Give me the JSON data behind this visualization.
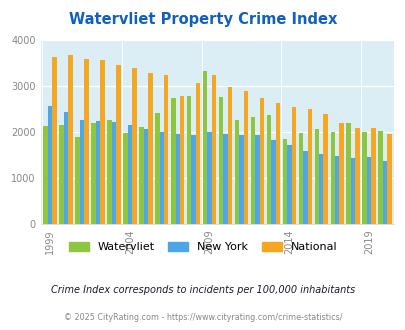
{
  "title": "Watervliet Property Crime Index",
  "title_color": "#1060c0",
  "years": [
    1999,
    2000,
    2001,
    2002,
    2003,
    2004,
    2005,
    2006,
    2007,
    2008,
    2009,
    2010,
    2011,
    2012,
    2013,
    2014,
    2015,
    2016,
    2017,
    2018,
    2019,
    2020
  ],
  "watervliet": [
    2120,
    2150,
    1900,
    2200,
    2270,
    1970,
    2100,
    2420,
    2730,
    2790,
    3310,
    2760,
    2270,
    2320,
    2360,
    1840,
    1980,
    2060,
    1990,
    2200,
    1990,
    2020
  ],
  "new_york": [
    2560,
    2440,
    2260,
    2230,
    2210,
    2160,
    2070,
    1990,
    1960,
    1930,
    2000,
    1950,
    1940,
    1930,
    1820,
    1720,
    1590,
    1530,
    1480,
    1440,
    1460,
    1370
  ],
  "national": [
    3620,
    3660,
    3590,
    3560,
    3450,
    3380,
    3270,
    3230,
    2790,
    3060,
    3230,
    2980,
    2890,
    2740,
    2620,
    2540,
    2490,
    2380,
    2190,
    2080,
    2090,
    1950
  ],
  "watervliet_color": "#8dc63f",
  "new_york_color": "#4da6e8",
  "national_color": "#f5a623",
  "plot_bg": "#dceef5",
  "ylim": [
    0,
    4000
  ],
  "yticks": [
    0,
    1000,
    2000,
    3000,
    4000
  ],
  "x_tick_years": [
    1999,
    2004,
    2009,
    2014,
    2019
  ],
  "subtitle": "Crime Index corresponds to incidents per 100,000 inhabitants",
  "footnote": "© 2025 CityRating.com - https://www.cityrating.com/crime-statistics/",
  "subtitle_color": "#1a1a2e",
  "footnote_color": "#888888",
  "legend_labels": [
    "Watervliet",
    "New York",
    "National"
  ]
}
